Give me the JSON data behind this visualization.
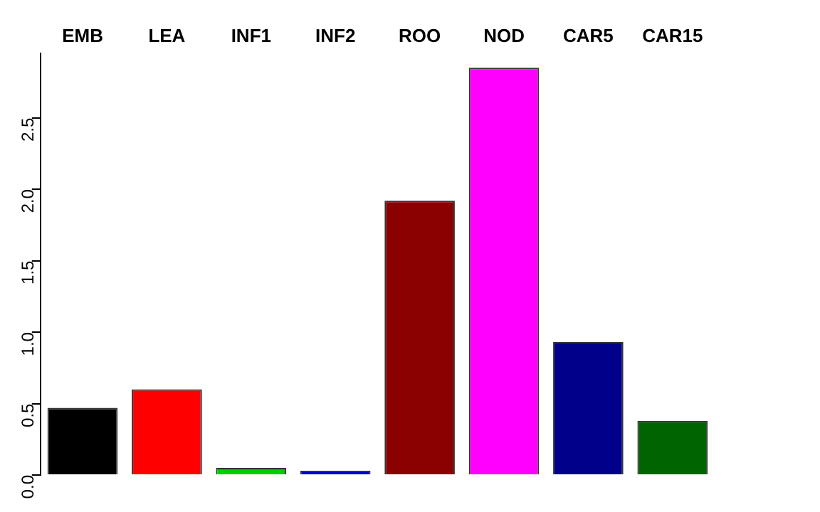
{
  "chart_data": {
    "type": "bar",
    "categories": [
      "EMB",
      "LEA",
      "INF1",
      "INF2",
      "ROO",
      "NOD",
      "CAR5",
      "CAR15"
    ],
    "values": [
      0.47,
      0.6,
      0.05,
      0.03,
      1.92,
      2.85,
      0.93,
      0.38
    ],
    "colors": [
      "#000000",
      "#ff0000",
      "#00cd00",
      "#0000cd",
      "#8b0000",
      "#ff00ff",
      "#00008b",
      "#006400"
    ],
    "ylim": [
      0,
      2.95
    ],
    "yticks": [
      {
        "value": 0,
        "label": "0.0"
      },
      0.5,
      {
        "value": 1,
        "label": "1.0"
      },
      1.5,
      {
        "value": 2,
        "label": "2.0"
      },
      2.5
    ],
    "grid": false
  }
}
